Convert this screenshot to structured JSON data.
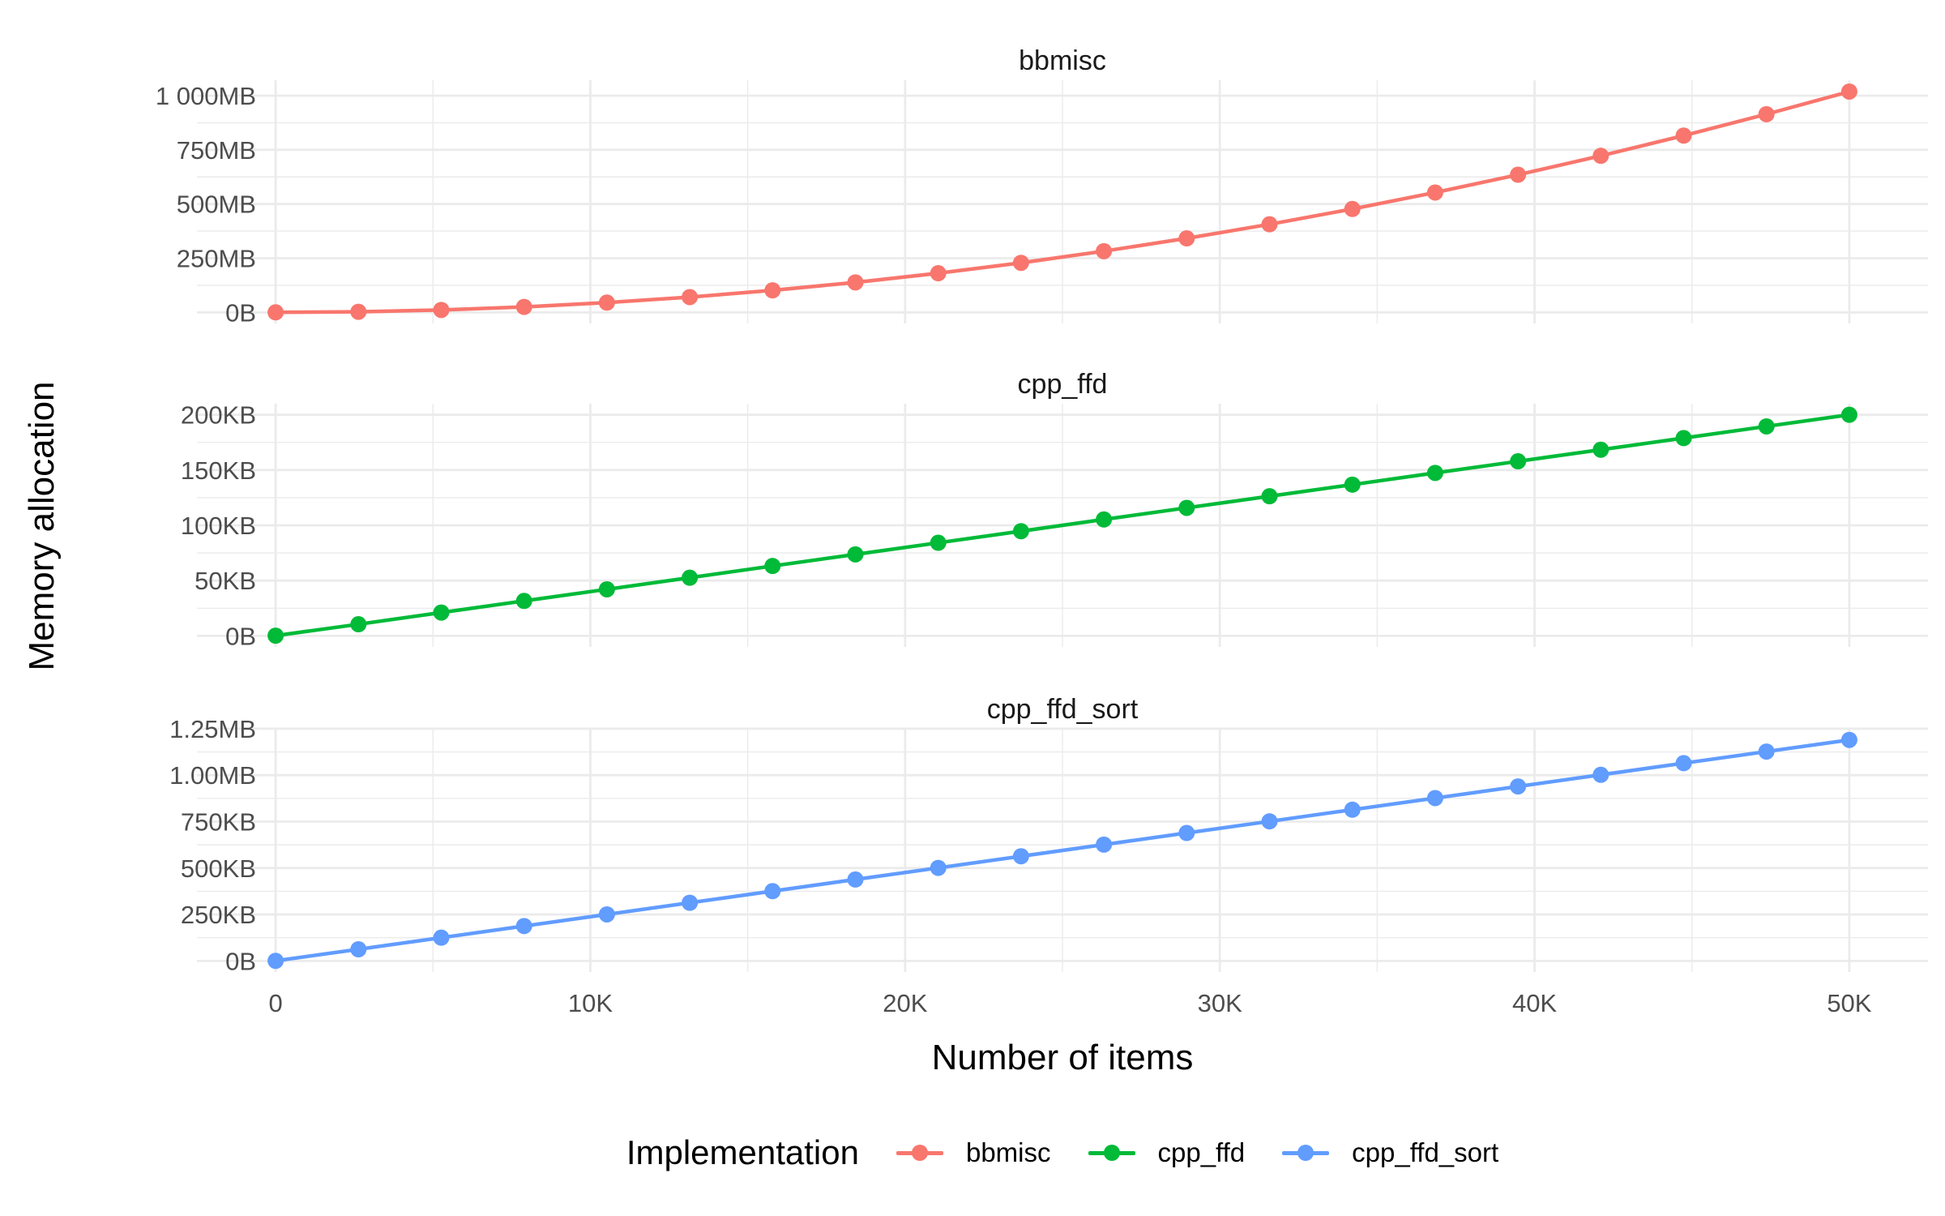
{
  "figure": {
    "y_axis_title": "Memory allocation",
    "x_axis_title": "Number of items"
  },
  "legend": {
    "title": "Implementation",
    "items": [
      {
        "label": "bbmisc",
        "color": "#F8766D"
      },
      {
        "label": "cpp_ffd",
        "color": "#00BA38"
      },
      {
        "label": "cpp_ffd_sort",
        "color": "#619CFF"
      }
    ]
  },
  "style": {
    "grid_color": "#EBEBEB",
    "tick_text_color": "#4D4D4D",
    "background": "#FFFFFF"
  },
  "chart_data": [
    {
      "type": "line",
      "title": "bbmisc",
      "series_name": "bbmisc",
      "color": "#F8766D",
      "unit": "MB",
      "x": [
        0,
        2632,
        5263,
        7895,
        10526,
        13158,
        15789,
        18421,
        21053,
        23684,
        26316,
        28947,
        31579,
        34211,
        36842,
        39474,
        42105,
        44737,
        47368,
        50000
      ],
      "y": [
        0.3,
        2.8,
        11.3,
        25.4,
        45.2,
        70.6,
        101.7,
        138.4,
        180.7,
        228.7,
        282.5,
        341.6,
        406.5,
        477.1,
        553.2,
        635.1,
        722.5,
        815.6,
        914.4,
        1018.7
      ],
      "ylim": [
        0,
        1020
      ],
      "y_ticks": [
        {
          "value": 0,
          "label": "0B"
        },
        {
          "value": 250,
          "label": "250MB"
        },
        {
          "value": 500,
          "label": "500MB"
        },
        {
          "value": 750,
          "label": "750MB"
        },
        {
          "value": 1000,
          "label": "1 000MB"
        }
      ],
      "y_minor": [
        125,
        375,
        625,
        875
      ]
    },
    {
      "type": "line",
      "title": "cpp_ffd",
      "series_name": "cpp_ffd",
      "color": "#00BA38",
      "unit": "KB",
      "x": [
        0,
        2632,
        5263,
        7895,
        10526,
        13158,
        15789,
        18421,
        21053,
        23684,
        26316,
        28947,
        31579,
        34211,
        36842,
        39474,
        42105,
        44737,
        47368,
        50000
      ],
      "y": [
        0.2,
        10.5,
        21.1,
        31.6,
        42.1,
        52.6,
        63.2,
        73.7,
        84.2,
        94.7,
        105.3,
        115.8,
        126.3,
        136.8,
        147.4,
        157.9,
        168.4,
        178.9,
        189.5,
        200.0
      ],
      "ylim": [
        0,
        200
      ],
      "y_ticks": [
        {
          "value": 0,
          "label": "0B"
        },
        {
          "value": 50,
          "label": "50KB"
        },
        {
          "value": 100,
          "label": "100KB"
        },
        {
          "value": 150,
          "label": "150KB"
        },
        {
          "value": 200,
          "label": "200KB"
        }
      ],
      "y_minor": [
        25,
        75,
        125,
        175
      ]
    },
    {
      "type": "line",
      "title": "cpp_ffd_sort",
      "series_name": "cpp_ffd_sort",
      "color": "#619CFF",
      "unit": "KB",
      "x": [
        0,
        2632,
        5263,
        7895,
        10526,
        13158,
        15789,
        18421,
        21053,
        23684,
        26316,
        28947,
        31579,
        34211,
        36842,
        39474,
        42105,
        44737,
        47368,
        50000
      ],
      "y": [
        0.6,
        62.6,
        125.2,
        187.8,
        250.4,
        313.0,
        375.7,
        438.3,
        500.9,
        563.5,
        626.1,
        688.7,
        751.3,
        814.0,
        876.6,
        939.2,
        1001.8,
        1064.4,
        1127.0,
        1189.6
      ],
      "ylim": [
        0,
        1190
      ],
      "y_ticks": [
        {
          "value": 0,
          "label": "0B"
        },
        {
          "value": 250,
          "label": "250KB"
        },
        {
          "value": 500,
          "label": "500KB"
        },
        {
          "value": 750,
          "label": "750KB"
        },
        {
          "value": 1000,
          "label": "1.00MB"
        },
        {
          "value": 1250,
          "label": "1.25MB"
        }
      ],
      "y_minor": [
        125,
        375,
        625,
        875,
        1125
      ]
    }
  ],
  "x_axis": {
    "xlim": [
      0,
      50000
    ],
    "ticks": [
      {
        "value": 0,
        "label": "0"
      },
      {
        "value": 10000,
        "label": "10K"
      },
      {
        "value": 20000,
        "label": "20K"
      },
      {
        "value": 30000,
        "label": "30K"
      },
      {
        "value": 40000,
        "label": "40K"
      },
      {
        "value": 50000,
        "label": "50K"
      }
    ],
    "minor": [
      5000,
      15000,
      25000,
      35000,
      45000
    ]
  }
}
